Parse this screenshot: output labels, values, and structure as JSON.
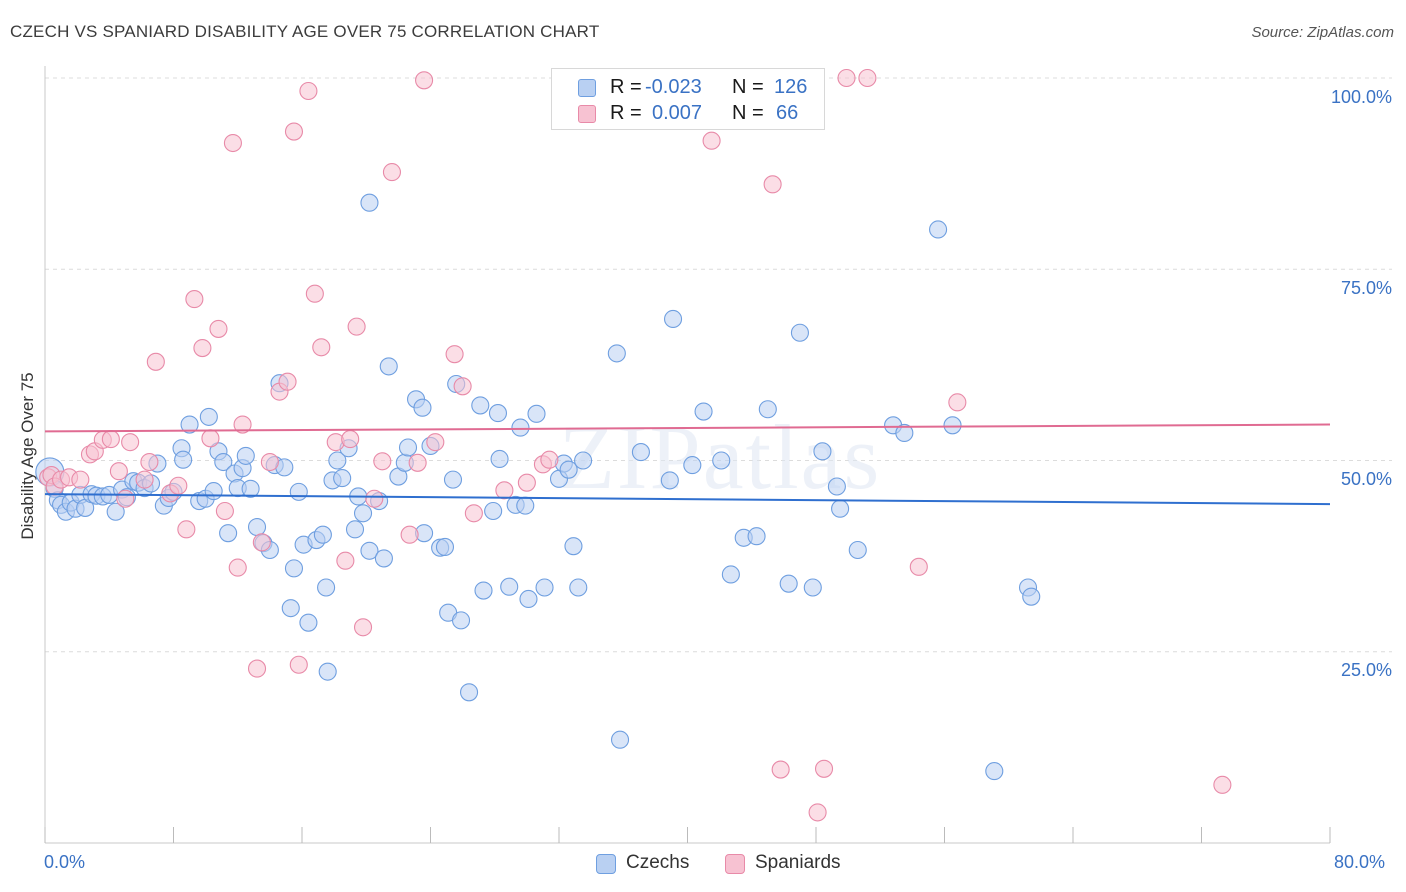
{
  "header": {
    "title": "CZECH VS SPANIARD DISABILITY AGE OVER 75 CORRELATION CHART",
    "source": "Source: ZipAtlas.com"
  },
  "legend": {
    "rows": [
      {
        "r_label": "R =",
        "r_value": "-0.023",
        "n_label": "N =",
        "n_value": "126"
      },
      {
        "r_label": "R =",
        "r_value": "0.007",
        "n_label": "N =",
        "n_value": "66"
      }
    ]
  },
  "bottom_legend": {
    "czechs": "Czechs",
    "spaniards": "Spaniards"
  },
  "watermark": "ZIPatlas",
  "chart_data": {
    "type": "scatter",
    "ylabel": "Disability Age Over 75",
    "xlim": [
      0,
      80
    ],
    "ylim": [
      0,
      100
    ],
    "x_tick_labels": [
      "0.0%",
      "80.0%"
    ],
    "y_tick_labels": [
      "100.0%",
      "75.0%",
      "50.0%",
      "25.0%"
    ],
    "y_ticks": [
      100,
      75,
      50,
      25
    ],
    "grid": true,
    "colors": {
      "czechs": "#6f9fe0",
      "czechs_fill": "#b9d0f2",
      "czechs_line": "#2f6fcf",
      "spaniards": "#e88aa8",
      "spaniards_fill": "#f7c2d2",
      "spaniards_line": "#e06b92"
    },
    "series": [
      {
        "name": "Czechs",
        "trend": [
          [
            0,
            45.6
          ],
          [
            80,
            44.3
          ]
        ],
        "points": [
          [
            0.3,
            48.5
          ],
          [
            0.6,
            46.3
          ],
          [
            0.8,
            44.8
          ],
          [
            1.0,
            44.2
          ],
          [
            1.3,
            43.3
          ],
          [
            1.6,
            44.5
          ],
          [
            1.9,
            43.7
          ],
          [
            2.2,
            45.5
          ],
          [
            2.5,
            43.8
          ],
          [
            2.9,
            45.6
          ],
          [
            3.2,
            45.4
          ],
          [
            3.6,
            45.3
          ],
          [
            4.0,
            45.5
          ],
          [
            4.4,
            43.3
          ],
          [
            4.8,
            46.2
          ],
          [
            5.1,
            45.2
          ],
          [
            5.5,
            47.3
          ],
          [
            5.8,
            47.1
          ],
          [
            6.2,
            46.4
          ],
          [
            6.6,
            47.0
          ],
          [
            7.0,
            49.6
          ],
          [
            7.4,
            44.1
          ],
          [
            7.7,
            45.1
          ],
          [
            8.0,
            45.9
          ],
          [
            8.5,
            51.6
          ],
          [
            8.6,
            50.1
          ],
          [
            9.0,
            54.7
          ],
          [
            9.6,
            44.7
          ],
          [
            10.0,
            45.0
          ],
          [
            10.2,
            55.7
          ],
          [
            10.5,
            46.0
          ],
          [
            10.8,
            51.2
          ],
          [
            11.1,
            49.8
          ],
          [
            11.4,
            40.5
          ],
          [
            11.8,
            48.3
          ],
          [
            12.0,
            46.4
          ],
          [
            12.3,
            49.0
          ],
          [
            12.5,
            50.6
          ],
          [
            12.8,
            46.3
          ],
          [
            13.2,
            41.3
          ],
          [
            13.6,
            39.2
          ],
          [
            14.0,
            38.3
          ],
          [
            14.3,
            49.4
          ],
          [
            14.6,
            60.1
          ],
          [
            14.9,
            49.1
          ],
          [
            15.3,
            30.7
          ],
          [
            15.5,
            35.9
          ],
          [
            15.8,
            45.9
          ],
          [
            16.1,
            39.0
          ],
          [
            16.4,
            28.8
          ],
          [
            16.9,
            39.6
          ],
          [
            17.3,
            40.3
          ],
          [
            17.6,
            22.4
          ],
          [
            17.5,
            33.4
          ],
          [
            17.9,
            47.4
          ],
          [
            18.2,
            50.0
          ],
          [
            18.5,
            47.7
          ],
          [
            18.9,
            51.6
          ],
          [
            19.3,
            41.0
          ],
          [
            19.5,
            45.3
          ],
          [
            19.8,
            43.1
          ],
          [
            20.2,
            38.2
          ],
          [
            20.2,
            83.7
          ],
          [
            20.8,
            44.7
          ],
          [
            21.1,
            37.2
          ],
          [
            21.4,
            62.3
          ],
          [
            22.0,
            47.9
          ],
          [
            22.4,
            49.7
          ],
          [
            22.6,
            51.7
          ],
          [
            23.1,
            58.0
          ],
          [
            23.5,
            56.9
          ],
          [
            23.6,
            40.5
          ],
          [
            24.0,
            51.9
          ],
          [
            24.6,
            38.6
          ],
          [
            24.9,
            38.7
          ],
          [
            25.1,
            30.1
          ],
          [
            25.4,
            47.5
          ],
          [
            25.6,
            60.0
          ],
          [
            25.9,
            29.1
          ],
          [
            26.4,
            19.7
          ],
          [
            27.1,
            57.2
          ],
          [
            27.3,
            33.0
          ],
          [
            27.9,
            43.4
          ],
          [
            28.2,
            56.2
          ],
          [
            28.3,
            50.2
          ],
          [
            28.9,
            33.5
          ],
          [
            29.3,
            44.2
          ],
          [
            29.6,
            54.3
          ],
          [
            29.9,
            44.1
          ],
          [
            30.1,
            31.9
          ],
          [
            30.6,
            56.1
          ],
          [
            31.1,
            33.4
          ],
          [
            32.0,
            47.6
          ],
          [
            32.3,
            49.6
          ],
          [
            32.6,
            48.8
          ],
          [
            32.9,
            38.8
          ],
          [
            33.2,
            33.4
          ],
          [
            33.5,
            50.0
          ],
          [
            35.8,
            13.5
          ],
          [
            35.6,
            64.0
          ],
          [
            37.1,
            51.1
          ],
          [
            38.9,
            47.4
          ],
          [
            39.1,
            68.5
          ],
          [
            40.3,
            49.4
          ],
          [
            41.0,
            56.4
          ],
          [
            42.1,
            50.0
          ],
          [
            42.7,
            35.1
          ],
          [
            43.5,
            39.9
          ],
          [
            44.3,
            40.1
          ],
          [
            45.0,
            56.7
          ],
          [
            46.3,
            33.9
          ],
          [
            47.0,
            66.7
          ],
          [
            47.8,
            33.4
          ],
          [
            48.4,
            51.2
          ],
          [
            49.3,
            46.6
          ],
          [
            49.5,
            43.7
          ],
          [
            50.6,
            38.3
          ],
          [
            52.8,
            54.6
          ],
          [
            53.5,
            53.6
          ],
          [
            55.6,
            80.2
          ],
          [
            56.5,
            54.6
          ],
          [
            59.1,
            9.4
          ],
          [
            61.2,
            33.4
          ],
          [
            61.4,
            32.2
          ]
        ]
      },
      {
        "name": "Spaniards",
        "trend": [
          [
            0,
            53.8
          ],
          [
            80,
            54.7
          ]
        ],
        "points": [
          [
            0.2,
            47.8
          ],
          [
            0.4,
            48.1
          ],
          [
            0.6,
            46.6
          ],
          [
            1.0,
            47.5
          ],
          [
            1.5,
            47.8
          ],
          [
            2.2,
            47.5
          ],
          [
            2.8,
            50.8
          ],
          [
            3.1,
            51.2
          ],
          [
            3.6,
            52.7
          ],
          [
            4.1,
            52.8
          ],
          [
            4.6,
            48.6
          ],
          [
            5.0,
            45.0
          ],
          [
            5.3,
            52.4
          ],
          [
            6.2,
            47.5
          ],
          [
            6.5,
            49.8
          ],
          [
            6.9,
            62.9
          ],
          [
            7.8,
            45.7
          ],
          [
            8.3,
            46.7
          ],
          [
            8.8,
            41.0
          ],
          [
            9.3,
            71.1
          ],
          [
            9.8,
            64.7
          ],
          [
            10.3,
            52.9
          ],
          [
            10.8,
            67.2
          ],
          [
            11.2,
            43.4
          ],
          [
            11.7,
            91.5
          ],
          [
            12.0,
            36.0
          ],
          [
            12.3,
            54.7
          ],
          [
            13.2,
            22.8
          ],
          [
            13.5,
            39.3
          ],
          [
            14.0,
            49.8
          ],
          [
            14.6,
            59.0
          ],
          [
            15.1,
            60.3
          ],
          [
            15.5,
            93.0
          ],
          [
            15.8,
            23.3
          ],
          [
            16.4,
            98.3
          ],
          [
            16.8,
            71.8
          ],
          [
            17.2,
            64.8
          ],
          [
            18.1,
            52.4
          ],
          [
            18.7,
            36.9
          ],
          [
            19.0,
            52.8
          ],
          [
            19.4,
            67.5
          ],
          [
            19.8,
            28.2
          ],
          [
            20.5,
            45.0
          ],
          [
            21.0,
            49.9
          ],
          [
            21.6,
            87.7
          ],
          [
            22.7,
            40.3
          ],
          [
            23.2,
            49.7
          ],
          [
            24.3,
            52.4
          ],
          [
            23.6,
            99.7
          ],
          [
            25.5,
            63.9
          ],
          [
            26.0,
            59.7
          ],
          [
            26.7,
            43.1
          ],
          [
            28.6,
            46.1
          ],
          [
            30.0,
            47.1
          ],
          [
            31.0,
            49.5
          ],
          [
            31.4,
            50.1
          ],
          [
            41.5,
            91.8
          ],
          [
            45.3,
            86.1
          ],
          [
            45.8,
            9.6
          ],
          [
            47.4,
            99.9
          ],
          [
            48.1,
            4.0
          ],
          [
            48.5,
            9.7
          ],
          [
            49.9,
            100.0
          ],
          [
            51.2,
            100.0
          ],
          [
            54.4,
            36.1
          ],
          [
            56.8,
            57.6
          ],
          [
            73.3,
            7.6
          ]
        ]
      }
    ]
  }
}
